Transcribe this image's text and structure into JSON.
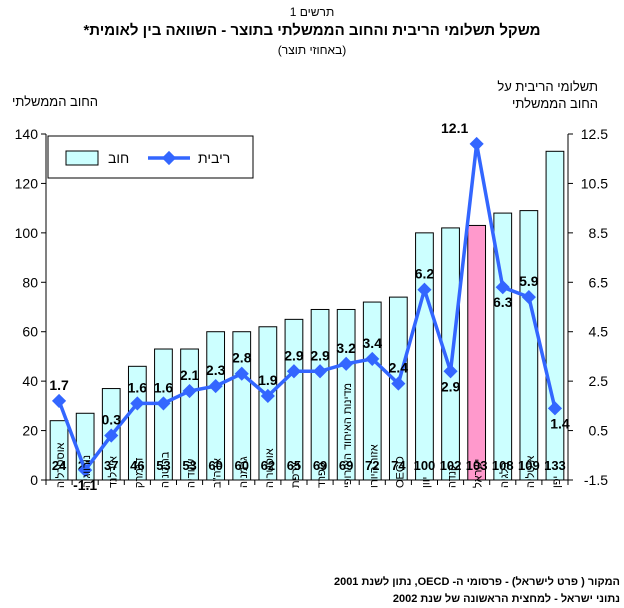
{
  "header": {
    "figure_number": "תרשים 1",
    "title": "משקל תשלומי הריבית והחוב הממשלתי בתוצר -   השוואה בין לאומית*",
    "subtitle": "(באחוזי תוצר)"
  },
  "axes": {
    "left_title": "החוב הממשלתי",
    "right_title_line1": "תשלומי הריבית על",
    "right_title_line2": "החוב הממשלתי"
  },
  "chart_data": {
    "type": "bar",
    "categories": [
      "אוסטרליה",
      "נורווגיה",
      "אירלנד",
      "דנמרק",
      "בריטניה",
      "שוודיה",
      "ארה\"ב",
      "גרמניה",
      "אוסטריה",
      "צרפת",
      "ספרד",
      "מדינות האיחוד האירופי",
      "אזור היורו",
      "OECD",
      "יוון",
      "קנדה",
      "ישראל",
      "בלגיה",
      "איטליה",
      "יפן"
    ],
    "series": [
      {
        "name": "חוב",
        "type": "bar",
        "axis": "left",
        "values": [
          24,
          27,
          37,
          46,
          53,
          53,
          60,
          60,
          62,
          65,
          69,
          69,
          72,
          74,
          100,
          102,
          103,
          108,
          109,
          133
        ],
        "labels": [
          "24",
          "27",
          "37",
          "46",
          "53",
          "53",
          "60",
          "60",
          "62",
          "65",
          "69",
          "69",
          "72",
          "74",
          "100",
          "102",
          "103",
          "108",
          "109",
          "133"
        ],
        "color": "#ccffff",
        "highlight_index": 16,
        "highlight_color": "#ff99cc"
      },
      {
        "name": "ריבית",
        "type": "line",
        "axis": "right",
        "values": [
          1.7,
          -1.1,
          0.3,
          1.6,
          1.6,
          2.1,
          2.3,
          2.8,
          1.9,
          2.9,
          2.9,
          3.2,
          3.4,
          2.4,
          6.2,
          2.9,
          12.1,
          6.3,
          5.9,
          1.4
        ],
        "labels": [
          "1.7",
          "-1.1",
          "0.3",
          "1.6",
          "1.6",
          "2.1",
          "2.3",
          "2.8",
          "1.9",
          "2.9",
          "2.9",
          "3.2",
          "3.4",
          "2.4",
          "6.2",
          "2.9",
          "12.1",
          "6.3",
          "5.9",
          "1.4"
        ],
        "color": "#3366ff"
      }
    ],
    "y_left": {
      "min": 0,
      "max": 140,
      "ticks": [
        "0",
        "20",
        "40",
        "60",
        "80",
        "100",
        "120",
        "140"
      ]
    },
    "y_right": {
      "min": -1.5,
      "max": 12.5,
      "ticks": [
        "-1.5",
        "0.5",
        "2.5",
        "4.5",
        "6.5",
        "8.5",
        "10.5",
        "12.5"
      ]
    },
    "legend": {
      "placement": "top-left"
    },
    "grid": false
  },
  "source": {
    "line1": "המקור  ( פרט לישראל)  -  פרסומי ה-   OECD,   נתון לשנת  2001",
    "line2": "נתוני ישראל   -    למחצית הראשונה של שנת  2002"
  }
}
